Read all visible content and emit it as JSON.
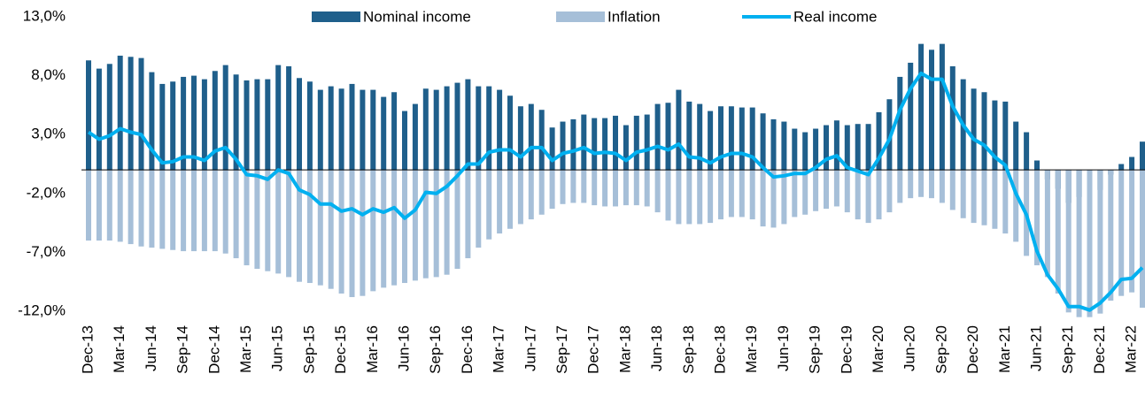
{
  "chart_data": {
    "type": "bar-line",
    "categories": [
      "Dec-13",
      null,
      null,
      "Mar-14",
      null,
      null,
      "Jun-14",
      null,
      null,
      "Sep-14",
      null,
      null,
      "Dec-14",
      null,
      null,
      "Mar-15",
      null,
      null,
      "Jun-15",
      null,
      null,
      "Sep-15",
      null,
      null,
      "Dec-15",
      null,
      null,
      "Mar-16",
      null,
      null,
      "Jun-16",
      null,
      null,
      "Sep-16",
      null,
      null,
      "Dec-16",
      null,
      null,
      "Mar-17",
      null,
      null,
      "Jun-17",
      null,
      null,
      "Sep-17",
      null,
      null,
      "Dec-17",
      null,
      null,
      "Mar-18",
      null,
      null,
      "Jun-18",
      null,
      null,
      "Sep-18",
      null,
      null,
      "Dec-18",
      null,
      null,
      "Mar-19",
      null,
      null,
      "Jun-19",
      null,
      null,
      "Sep-19",
      null,
      null,
      "Dec-19",
      null,
      null,
      "Mar-20",
      null,
      null,
      "Jun-20",
      null,
      null,
      "Sep-20",
      null,
      null,
      "Dec-20",
      null,
      null,
      "Mar-21",
      null,
      null,
      "Jun-21",
      null,
      null,
      "Sep-21",
      null,
      null,
      "Dec-21",
      null,
      null,
      "Mar-22",
      null
    ],
    "series": [
      {
        "name": "Nominal income",
        "kind": "bar",
        "color": "#1f5f8b",
        "values": [
          9.3,
          8.6,
          9.0,
          9.7,
          9.6,
          9.5,
          8.3,
          7.3,
          7.5,
          7.9,
          8.0,
          7.7,
          8.4,
          8.9,
          8.1,
          7.6,
          7.7,
          7.7,
          8.9,
          8.8,
          7.8,
          7.5,
          6.8,
          7.1,
          6.9,
          7.3,
          6.8,
          6.8,
          6.2,
          6.6,
          5.0,
          5.6,
          6.9,
          6.8,
          7.1,
          7.4,
          7.7,
          7.1,
          7.1,
          6.8,
          6.3,
          5.4,
          5.6,
          5.1,
          3.6,
          4.1,
          4.3,
          4.7,
          4.4,
          4.4,
          4.6,
          3.8,
          4.6,
          4.7,
          5.6,
          5.7,
          6.8,
          5.8,
          5.6,
          5.0,
          5.4,
          5.4,
          5.3,
          5.3,
          4.8,
          4.3,
          4.1,
          3.5,
          3.2,
          3.5,
          3.8,
          4.2,
          3.8,
          3.9,
          3.9,
          4.9,
          6.0,
          7.9,
          9.1,
          10.7,
          10.2,
          10.7,
          8.8,
          7.7,
          6.9,
          6.6,
          5.9,
          5.8,
          4.1,
          3.2,
          0.8,
          -0.8,
          -1.6,
          -2.8,
          -2.3,
          -2.3,
          -1.7,
          -0.4,
          0.5,
          1.1,
          2.4
        ]
      },
      {
        "name": "Inflation",
        "kind": "bar",
        "color": "#a6bfd8",
        "values": [
          -6.0,
          -6.0,
          -6.0,
          -6.1,
          -6.3,
          -6.5,
          -6.6,
          -6.7,
          -6.8,
          -6.9,
          -6.9,
          -6.9,
          -6.9,
          -7.1,
          -7.5,
          -8.1,
          -8.4,
          -8.6,
          -8.8,
          -9.1,
          -9.5,
          -9.6,
          -9.8,
          -10.1,
          -10.5,
          -10.8,
          -10.7,
          -10.3,
          -10.0,
          -9.8,
          -9.6,
          -9.4,
          -9.2,
          -9.1,
          -8.9,
          -8.4,
          -7.5,
          -6.6,
          -5.9,
          -5.4,
          -5.0,
          -4.6,
          -4.2,
          -3.8,
          -3.3,
          -2.9,
          -2.8,
          -2.8,
          -3.0,
          -3.1,
          -3.1,
          -3.0,
          -3.0,
          -3.1,
          -3.6,
          -4.3,
          -4.6,
          -4.6,
          -4.6,
          -4.5,
          -4.2,
          -4.0,
          -4.0,
          -4.2,
          -4.8,
          -4.9,
          -4.6,
          -4.0,
          -3.8,
          -3.5,
          -3.3,
          -3.1,
          -3.6,
          -4.2,
          -4.5,
          -4.2,
          -3.6,
          -2.8,
          -2.4,
          -2.3,
          -2.4,
          -2.8,
          -3.4,
          -4.1,
          -4.5,
          -4.7,
          -5.0,
          -5.4,
          -6.1,
          -7.3,
          -8.1,
          -9.1,
          -10.5,
          -12.1,
          -12.5,
          -12.5,
          -12.2,
          -11.1,
          -10.7,
          -10.4,
          -11.7
        ]
      },
      {
        "name": "Real income",
        "kind": "line",
        "color": "#00b0f0",
        "values": [
          3.2,
          2.6,
          2.9,
          3.5,
          3.2,
          3.0,
          1.7,
          0.6,
          0.7,
          1.1,
          1.1,
          0.8,
          1.6,
          1.9,
          0.9,
          -0.4,
          -0.5,
          -0.8,
          0.0,
          -0.3,
          -1.7,
          -2.1,
          -2.9,
          -2.9,
          -3.5,
          -3.3,
          -3.8,
          -3.3,
          -3.6,
          -3.2,
          -4.1,
          -3.4,
          -1.9,
          -2.0,
          -1.4,
          -0.5,
          0.5,
          0.5,
          1.5,
          1.7,
          1.7,
          1.1,
          1.9,
          1.9,
          0.8,
          1.4,
          1.6,
          1.9,
          1.4,
          1.5,
          1.4,
          0.8,
          1.5,
          1.7,
          2.0,
          1.7,
          2.2,
          1.1,
          1.0,
          0.6,
          1.1,
          1.4,
          1.4,
          1.1,
          0.2,
          -0.6,
          -0.5,
          -0.3,
          -0.3,
          0.2,
          0.9,
          1.2,
          0.2,
          -0.1,
          -0.4,
          1.0,
          2.6,
          5.1,
          6.9,
          8.2,
          7.7,
          7.7,
          5.4,
          3.8,
          2.6,
          2.1,
          1.1,
          0.4,
          -2.0,
          -3.8,
          -6.9,
          -8.9,
          -10.1,
          -11.6,
          -11.6,
          -11.9,
          -11.3,
          -10.4,
          -9.3,
          -9.2,
          -8.3
        ]
      }
    ],
    "ylim": [
      -12,
      13
    ],
    "yticks": [
      {
        "value": -12,
        "label": "-12,0%"
      },
      {
        "value": -7,
        "label": "-7,0%"
      },
      {
        "value": -2,
        "label": "-2,0%"
      },
      {
        "value": 3,
        "label": "3,0%"
      },
      {
        "value": 8,
        "label": "8,0%"
      },
      {
        "value": 13,
        "label": "13,0%"
      }
    ],
    "grid": false,
    "legend": "top"
  }
}
